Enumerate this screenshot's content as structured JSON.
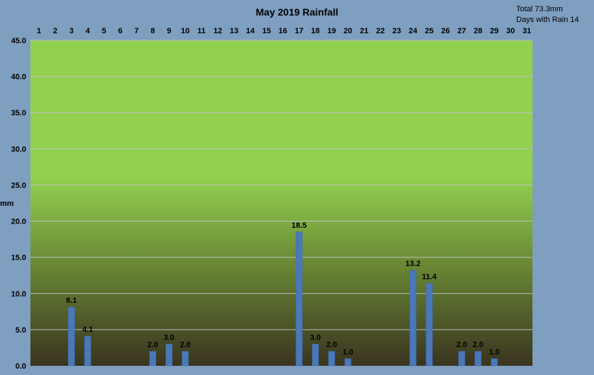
{
  "chart_data": {
    "type": "bar",
    "title": "May 2019 Rainfall",
    "ylabel": "mm",
    "ylim": [
      0,
      45
    ],
    "yticks": [
      "0.0",
      "5.0",
      "10.0",
      "15.0",
      "20.0",
      "25.0",
      "30.0",
      "35.0",
      "40.0",
      "45.0"
    ],
    "categories": [
      "1",
      "2",
      "3",
      "4",
      "5",
      "6",
      "7",
      "8",
      "9",
      "10",
      "11",
      "12",
      "13",
      "14",
      "15",
      "16",
      "17",
      "18",
      "19",
      "20",
      "21",
      "22",
      "23",
      "24",
      "25",
      "26",
      "27",
      "28",
      "29",
      "30",
      "31"
    ],
    "values": [
      0,
      0,
      8.1,
      4.1,
      0,
      0,
      0,
      2.0,
      3.0,
      2.0,
      0,
      0,
      0,
      0,
      0,
      0,
      18.5,
      3.0,
      2.0,
      1.0,
      0,
      0,
      0,
      13.2,
      11.4,
      0,
      2.0,
      2.0,
      1.0,
      0,
      0
    ],
    "data_labels": [
      "",
      "",
      "8.1",
      "4.1",
      "",
      "",
      "",
      "2.0",
      "3.0",
      "2.0",
      "",
      "",
      "",
      "",
      "",
      "",
      "18.5",
      "3.0",
      "2.0",
      "1.0",
      "",
      "",
      "",
      "13.2",
      "11.4",
      "",
      "2.0",
      "2.0",
      "1.0",
      "",
      ""
    ],
    "grid": true,
    "x_axis_position": "top",
    "colors": {
      "background": "#7f9fc0",
      "plot_top": "#92d050",
      "plot_bottom": "#3a3420",
      "bar": "#4a78b8",
      "grid": "#bfbfbf"
    },
    "summary": {
      "total": "Total 73.3mm",
      "days_with_rain": "Days with Rain 14"
    }
  }
}
